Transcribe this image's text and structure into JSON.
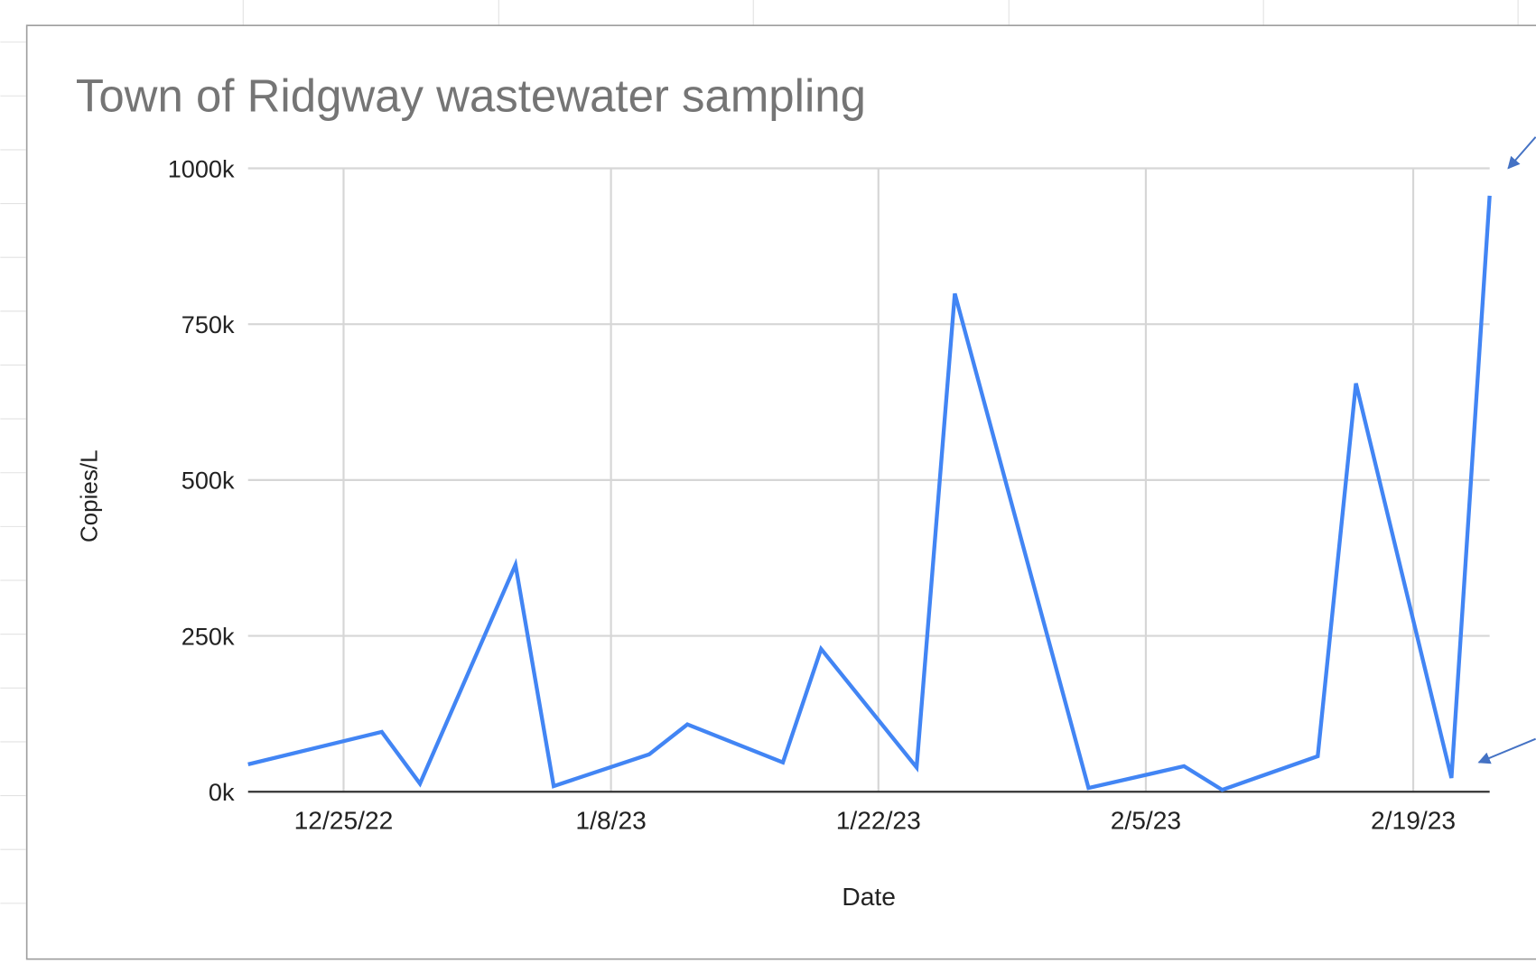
{
  "chart_data": {
    "type": "line",
    "title": "Town of Ridgway wastewater sampling",
    "x_label": "Date",
    "y_label": "Copies/L",
    "x": [
      "2022-12-20",
      "2022-12-27",
      "2022-12-29",
      "2023-01-03",
      "2023-01-05",
      "2023-01-10",
      "2023-01-12",
      "2023-01-17",
      "2023-01-19",
      "2023-01-24",
      "2023-01-26",
      "2023-02-02",
      "2023-02-07",
      "2023-02-09",
      "2023-02-14",
      "2023-02-16",
      "2023-02-21",
      "2023-02-23"
    ],
    "series": [
      {
        "name": "Copies/L",
        "color": "#4285f4",
        "values": [
          44000,
          96000,
          13000,
          364000,
          9000,
          60000,
          108000,
          47000,
          229000,
          39000,
          799000,
          6000,
          41000,
          3000,
          57000,
          655000,
          22000,
          956000
        ]
      }
    ],
    "xlim": [
      "2022-12-20",
      "2023-02-23"
    ],
    "xticks": [
      {
        "value": "2022-12-25",
        "label": "12/25/22"
      },
      {
        "value": "2023-01-08",
        "label": "1/8/23"
      },
      {
        "value": "2023-01-22",
        "label": "1/22/23"
      },
      {
        "value": "2023-02-05",
        "label": "2/5/23"
      },
      {
        "value": "2023-02-19",
        "label": "2/19/23"
      }
    ],
    "ylim": [
      0,
      1000000
    ],
    "yticks": [
      {
        "value": 0,
        "label": "0k"
      },
      {
        "value": 250000,
        "label": "250k"
      },
      {
        "value": 500000,
        "label": "500k"
      },
      {
        "value": 750000,
        "label": "750k"
      },
      {
        "value": 1000000,
        "label": "1000k"
      }
    ],
    "grid": true
  }
}
